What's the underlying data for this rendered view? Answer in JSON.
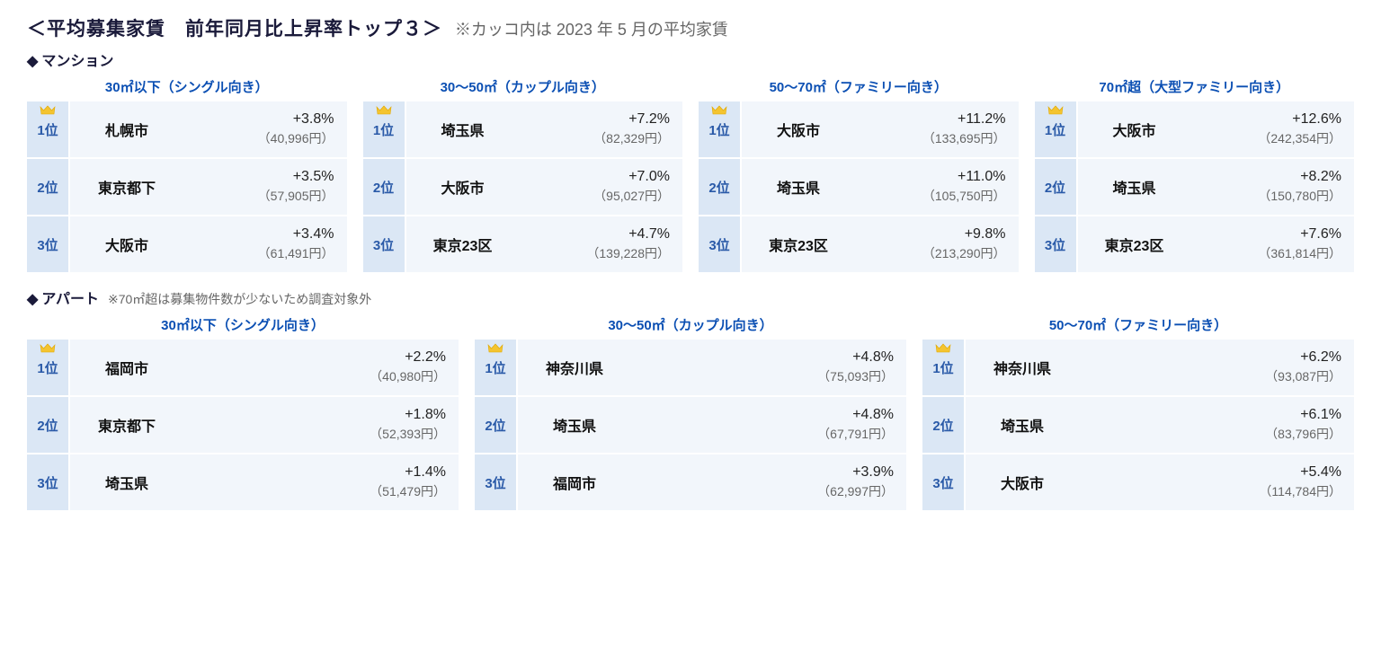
{
  "title_main": "＜平均募集家賃　前年同月比上昇率トップ３＞",
  "title_note": "※カッコ内は 2023 年 5 月の平均家賃",
  "sections": [
    {
      "heading": "マンション",
      "note": "",
      "groups": [
        {
          "title": "30㎡以下（シングル向き）",
          "rows": [
            {
              "rank": "1位",
              "crown": true,
              "city": "札幌市",
              "pct": "+3.8%",
              "paren": "（40,996円）"
            },
            {
              "rank": "2位",
              "crown": false,
              "city": "東京都下",
              "pct": "+3.5%",
              "paren": "（57,905円）"
            },
            {
              "rank": "3位",
              "crown": false,
              "city": "大阪市",
              "pct": "+3.4%",
              "paren": "（61,491円）"
            }
          ]
        },
        {
          "title": "30～50㎡（カップル向き）",
          "rows": [
            {
              "rank": "1位",
              "crown": true,
              "city": "埼玉県",
              "pct": "+7.2%",
              "paren": "（82,329円）"
            },
            {
              "rank": "2位",
              "crown": false,
              "city": "大阪市",
              "pct": "+7.0%",
              "paren": "（95,027円）"
            },
            {
              "rank": "3位",
              "crown": false,
              "city": "東京23区",
              "pct": "+4.7%",
              "paren": "（139,228円）"
            }
          ]
        },
        {
          "title": "50～70㎡（ファミリー向き）",
          "rows": [
            {
              "rank": "1位",
              "crown": true,
              "city": "大阪市",
              "pct": "+11.2%",
              "paren": "（133,695円）"
            },
            {
              "rank": "2位",
              "crown": false,
              "city": "埼玉県",
              "pct": "+11.0%",
              "paren": "（105,750円）"
            },
            {
              "rank": "3位",
              "crown": false,
              "city": "東京23区",
              "pct": "+9.8%",
              "paren": "（213,290円）"
            }
          ]
        },
        {
          "title": "70㎡超（大型ファミリー向き）",
          "rows": [
            {
              "rank": "1位",
              "crown": true,
              "city": "大阪市",
              "pct": "+12.6%",
              "paren": "（242,354円）"
            },
            {
              "rank": "2位",
              "crown": false,
              "city": "埼玉県",
              "pct": "+8.2%",
              "paren": "（150,780円）"
            },
            {
              "rank": "3位",
              "crown": false,
              "city": "東京23区",
              "pct": "+7.6%",
              "paren": "（361,814円）"
            }
          ]
        }
      ]
    },
    {
      "heading": "アパート",
      "note": "※70㎡超は募集物件数が少ないため調査対象外",
      "groups": [
        {
          "title": "30㎡以下（シングル向き）",
          "rows": [
            {
              "rank": "1位",
              "crown": true,
              "city": "福岡市",
              "pct": "+2.2%",
              "paren": "（40,980円）"
            },
            {
              "rank": "2位",
              "crown": false,
              "city": "東京都下",
              "pct": "+1.8%",
              "paren": "（52,393円）"
            },
            {
              "rank": "3位",
              "crown": false,
              "city": "埼玉県",
              "pct": "+1.4%",
              "paren": "（51,479円）"
            }
          ]
        },
        {
          "title": "30～50㎡（カップル向き）",
          "rows": [
            {
              "rank": "1位",
              "crown": true,
              "city": "神奈川県",
              "pct": "+4.8%",
              "paren": "（75,093円）"
            },
            {
              "rank": "2位",
              "crown": false,
              "city": "埼玉県",
              "pct": "+4.8%",
              "paren": "（67,791円）"
            },
            {
              "rank": "3位",
              "crown": false,
              "city": "福岡市",
              "pct": "+3.9%",
              "paren": "（62,997円）"
            }
          ]
        },
        {
          "title": "50～70㎡（ファミリー向き）",
          "rows": [
            {
              "rank": "1位",
              "crown": true,
              "city": "神奈川県",
              "pct": "+6.2%",
              "paren": "（93,087円）"
            },
            {
              "rank": "2位",
              "crown": false,
              "city": "埼玉県",
              "pct": "+6.1%",
              "paren": "（83,796円）"
            },
            {
              "rank": "3位",
              "crown": false,
              "city": "大阪市",
              "pct": "+5.4%",
              "paren": "（114,784円）"
            }
          ]
        }
      ]
    }
  ],
  "colors": {
    "rank_bg": "#dbe7f5",
    "rank_text": "#2a5aa8",
    "cell_bg": "#f2f6fb",
    "group_title": "#0b4fb3",
    "crown": "#f4c430"
  }
}
